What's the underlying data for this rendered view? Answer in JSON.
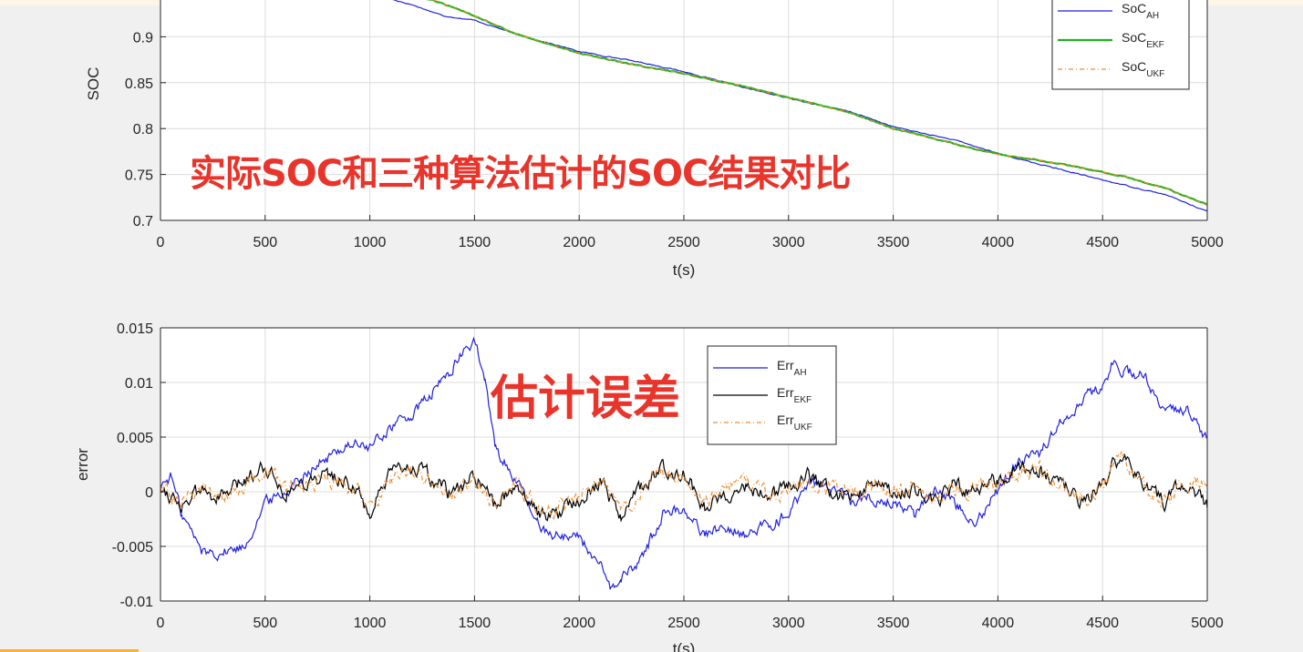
{
  "overlays": {
    "top": "实际SOC和三种算法估计的SOC结果对比",
    "bottom": "估计误差"
  },
  "colors": {
    "ah": "#2020e0",
    "ekf_top": "#22b022",
    "ukf": "#f08c2c",
    "ekf_bottom": "#000000"
  },
  "chart_data": [
    {
      "type": "line",
      "title": "",
      "xlabel": "t(s)",
      "ylabel": "SOC",
      "xlim": [
        0,
        5000
      ],
      "ylim": [
        0.7,
        0.95
      ],
      "xticks": [
        0,
        500,
        1000,
        1500,
        2000,
        2500,
        3000,
        3500,
        4000,
        4500,
        5000
      ],
      "yticks": [
        0.7,
        0.75,
        0.8,
        0.85,
        0.9
      ],
      "ytick_labels": [
        "0.7",
        "0.75",
        "0.8",
        "0.85",
        "0.9"
      ],
      "grid": true,
      "legend_position": "top-right",
      "series": [
        {
          "name": "SoC",
          "sub": "AH",
          "color_key": "ah",
          "dash": "",
          "x": [
            1070,
            1200,
            1350,
            1500,
            1700,
            2000,
            2300,
            2500,
            2800,
            3000,
            3300,
            3500,
            3800,
            4000,
            4200,
            4500,
            4800,
            5000
          ],
          "y": [
            0.943,
            0.935,
            0.923,
            0.918,
            0.903,
            0.884,
            0.872,
            0.862,
            0.844,
            0.833,
            0.818,
            0.802,
            0.787,
            0.773,
            0.761,
            0.744,
            0.728,
            0.71
          ]
        },
        {
          "name": "SoC",
          "sub": "EKF",
          "color_key": "ekf_top",
          "dash": "",
          "x": [
            1150,
            1300,
            1500,
            1700,
            2000,
            2300,
            2500,
            2800,
            3000,
            3300,
            3500,
            3800,
            4000,
            4300,
            4600,
            4800,
            5000
          ],
          "y": [
            0.945,
            0.94,
            0.923,
            0.903,
            0.882,
            0.868,
            0.86,
            0.845,
            0.834,
            0.817,
            0.8,
            0.783,
            0.772,
            0.762,
            0.748,
            0.735,
            0.717
          ]
        },
        {
          "name": "SoC",
          "sub": "UKF",
          "color_key": "ukf",
          "dash": "5,3,1,3",
          "x": [
            1150,
            1300,
            1500,
            1700,
            2000,
            2300,
            2500,
            2800,
            3000,
            3300,
            3500,
            3800,
            4000,
            4300,
            4600,
            4800,
            5000
          ],
          "y": [
            0.945,
            0.94,
            0.923,
            0.903,
            0.882,
            0.868,
            0.86,
            0.845,
            0.834,
            0.817,
            0.8,
            0.783,
            0.772,
            0.762,
            0.748,
            0.735,
            0.717
          ]
        }
      ]
    },
    {
      "type": "line",
      "title": "",
      "xlabel": "t(s)",
      "ylabel": "error",
      "xlim": [
        0,
        5000
      ],
      "ylim": [
        -0.01,
        0.015
      ],
      "xticks": [
        0,
        500,
        1000,
        1500,
        2000,
        2500,
        3000,
        3500,
        4000,
        4500,
        5000
      ],
      "yticks": [
        -0.01,
        -0.005,
        0,
        0.005,
        0.01,
        0.015
      ],
      "ytick_labels": [
        "-0.01",
        "-0.005",
        "0",
        "0.005",
        "0.01",
        "0.015"
      ],
      "grid": true,
      "legend_position": "top-middle",
      "series": [
        {
          "name": "Err",
          "sub": "AH",
          "color_key": "ah",
          "dash": "",
          "x": [
            0,
            50,
            100,
            200,
            300,
            400,
            500,
            600,
            700,
            800,
            900,
            1000,
            1100,
            1200,
            1300,
            1400,
            1500,
            1550,
            1600,
            1700,
            1800,
            1900,
            2000,
            2100,
            2150,
            2200,
            2300,
            2400,
            2500,
            2600,
            2700,
            2800,
            2900,
            3000,
            3100,
            3200,
            3300,
            3400,
            3500,
            3600,
            3700,
            3800,
            3900,
            4000,
            4100,
            4200,
            4300,
            4400,
            4500,
            4550,
            4600,
            4700,
            4800,
            4900,
            5000
          ],
          "y": [
            0.0005,
            0.0015,
            -0.002,
            -0.0055,
            -0.0055,
            -0.005,
            -0.001,
            0,
            0.002,
            0.003,
            0.0045,
            0.004,
            0.006,
            0.007,
            0.009,
            0.0115,
            0.014,
            0.01,
            0.004,
            0.001,
            -0.003,
            -0.004,
            -0.004,
            -0.007,
            -0.009,
            -0.008,
            -0.006,
            -0.002,
            -0.0015,
            -0.004,
            -0.003,
            -0.004,
            -0.003,
            -0.002,
            0.001,
            0,
            -0.001,
            -0.0005,
            -0.001,
            -0.002,
            0.0005,
            -0.001,
            -0.0025,
            0,
            0.003,
            0.0035,
            0.0065,
            0.0085,
            0.0095,
            0.012,
            0.011,
            0.0105,
            0.007,
            0.0075,
            0.005
          ]
        },
        {
          "name": "Err",
          "sub": "EKF",
          "color_key": "ekf_bottom",
          "dash": "",
          "x": [
            0,
            100,
            200,
            300,
            400,
            500,
            600,
            700,
            800,
            900,
            1000,
            1100,
            1200,
            1300,
            1400,
            1500,
            1600,
            1700,
            1800,
            1900,
            2000,
            2100,
            2200,
            2300,
            2400,
            2500,
            2600,
            2700,
            2800,
            2900,
            3000,
            3100,
            3200,
            3300,
            3400,
            3500,
            3600,
            3700,
            3800,
            3900,
            4000,
            4100,
            4200,
            4300,
            4400,
            4500,
            4600,
            4700,
            4800,
            4900,
            5000
          ],
          "y": [
            0.0005,
            -0.001,
            0,
            -0.0005,
            0.001,
            0.0025,
            0,
            0.001,
            0.0015,
            0.001,
            -0.002,
            0.0015,
            0.0025,
            0.001,
            -0.0005,
            0.0015,
            -0.0015,
            0.001,
            -0.002,
            -0.002,
            -0.0005,
            0.001,
            -0.002,
            0.0005,
            0.002,
            0.002,
            -0.0015,
            0,
            0.0005,
            -0.0005,
            0.0005,
            0.0015,
            0,
            -0.0005,
            0.001,
            -0.0005,
            0.0005,
            -0.001,
            0.0005,
            0,
            0.001,
            0.0025,
            0.002,
            0.0005,
            -0.001,
            0.001,
            0.0035,
            0.0005,
            -0.001,
            0.001,
            -0.0015
          ]
        },
        {
          "name": "Err",
          "sub": "UKF",
          "color_key": "ukf",
          "dash": "5,3,1,3",
          "x": [
            0,
            100,
            200,
            300,
            400,
            500,
            600,
            700,
            800,
            900,
            1000,
            1100,
            1200,
            1300,
            1400,
            1500,
            1600,
            1700,
            1800,
            1900,
            2000,
            2100,
            2200,
            2300,
            2400,
            2500,
            2600,
            2700,
            2800,
            2900,
            3000,
            3100,
            3200,
            3300,
            3400,
            3500,
            3600,
            3700,
            3800,
            3900,
            4000,
            4100,
            4200,
            4300,
            4400,
            4500,
            4600,
            4700,
            4800,
            4900,
            5000
          ],
          "y": [
            0.0003,
            -0.0008,
            0.0002,
            -0.0003,
            0.0008,
            0.002,
            0.0002,
            0.0008,
            0.0012,
            0.0008,
            -0.0015,
            0.0012,
            0.002,
            0.0008,
            -0.0003,
            0.0012,
            -0.0012,
            0.0008,
            -0.0015,
            -0.0015,
            -0.0003,
            0.0008,
            -0.0015,
            0.0003,
            0.0018,
            0.0015,
            -0.0012,
            0.0002,
            0.0008,
            -0.0003,
            0.0003,
            0.0012,
            0.0002,
            -0.0003,
            0.0008,
            -0.0003,
            0.0003,
            -0.0008,
            0.0003,
            0.0002,
            0.0008,
            0.002,
            0.0018,
            0.0003,
            -0.0008,
            0.0008,
            0.003,
            0.0003,
            -0.0008,
            0.0008,
            0.0008
          ]
        }
      ]
    }
  ]
}
